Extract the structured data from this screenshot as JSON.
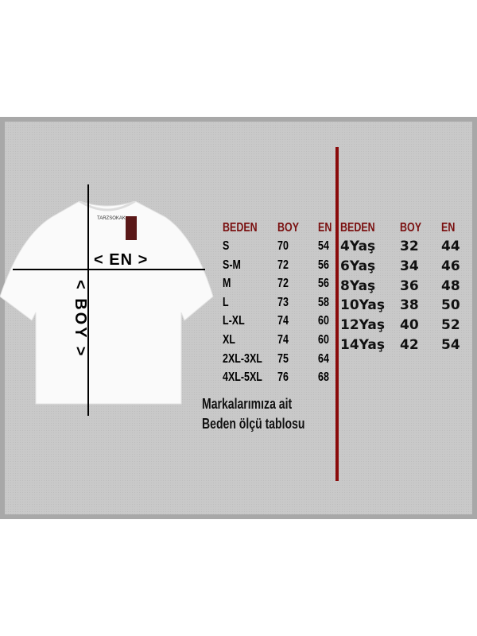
{
  "diagram": {
    "width_label": "< EN >",
    "length_label": "< BOY >",
    "tag_text": "TARZSOKAK"
  },
  "adult_table": {
    "headers": [
      "BEDEN",
      "BOY",
      "EN"
    ],
    "rows": [
      [
        "S",
        "70",
        "54"
      ],
      [
        "S-M",
        "72",
        "56"
      ],
      [
        "M",
        "72",
        "56"
      ],
      [
        "L",
        "73",
        "58"
      ],
      [
        "L-XL",
        "74",
        "60"
      ],
      [
        "XL",
        "74",
        "60"
      ],
      [
        "2XL-3XL",
        "75",
        "64"
      ],
      [
        "4XL-5XL",
        "76",
        "68"
      ]
    ]
  },
  "kids_table": {
    "headers": [
      "BEDEN",
      "BOY",
      "EN"
    ],
    "rows": [
      [
        "4Yaş",
        "32",
        "44"
      ],
      [
        "6Yaş",
        "34",
        "46"
      ],
      [
        "8Yaş",
        "36",
        "48"
      ],
      [
        "10Yaş",
        "38",
        "50"
      ],
      [
        "12Yaş",
        "40",
        "52"
      ],
      [
        "14Yaş",
        "42",
        "54"
      ]
    ]
  },
  "note": {
    "line1": "Markalarımıza ait",
    "line2": "Beden ölçü tablosu"
  },
  "colors": {
    "header": "#7a1010",
    "divider": "#8a0a0a",
    "background": "#c9c9c9"
  }
}
